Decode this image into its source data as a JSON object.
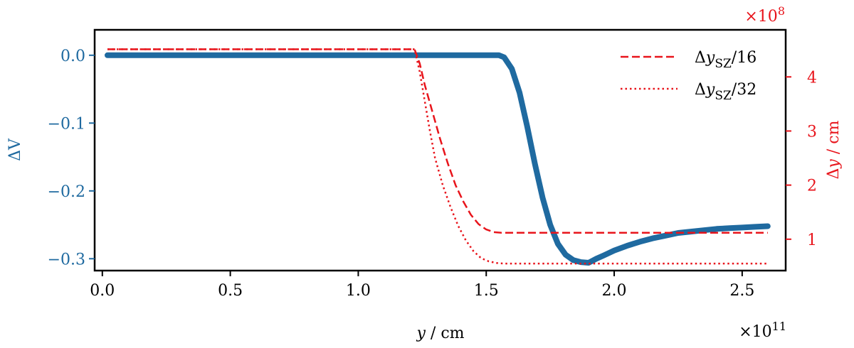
{
  "chart_data": {
    "type": "line",
    "colors": {
      "left_axis": "#1f6aa0",
      "right_axis": "#e8141b",
      "frame": "#000000"
    },
    "x_axis": {
      "label_var": "y",
      "label_unit": "cm",
      "ticks": [
        0.0,
        0.5,
        1.0,
        1.5,
        2.0,
        2.5
      ],
      "tick_labels": [
        "0.0",
        "0.5",
        "1.0",
        "1.5",
        "2.0",
        "2.5"
      ],
      "xlim": [
        -0.03,
        2.67
      ],
      "multiplier": "×10",
      "multiplier_exp": "11"
    },
    "y_left": {
      "label": "ΔV",
      "ticks": [
        0.0,
        -0.1,
        -0.2,
        -0.3
      ],
      "tick_labels": [
        "0.0",
        "−0.1",
        "−0.2",
        "−0.3"
      ],
      "ylim": [
        -0.3175,
        0.0375
      ]
    },
    "y_right": {
      "label_prefix": "Δ",
      "label_var": "y",
      "label_unit": "cm",
      "ticks": [
        1,
        2,
        3,
        4
      ],
      "tick_labels": [
        "1",
        "2",
        "3",
        "4"
      ],
      "ylim": [
        0.42,
        4.87
      ],
      "multiplier": "×10",
      "multiplier_exp": "8"
    },
    "legend": {
      "placement": "top-right",
      "entries": [
        {
          "prefix": "Δ",
          "var": "y",
          "sub": "SZ",
          "suffix": "/16",
          "style": "dashed"
        },
        {
          "prefix": "Δ",
          "var": "y",
          "sub": "SZ",
          "suffix": "/32",
          "style": "dotted"
        }
      ]
    },
    "series": [
      {
        "axis": "left",
        "style": "thick-solid",
        "points": [
          [
            0.02,
            0.0
          ],
          [
            1.0,
            0.0
          ],
          [
            1.55,
            0.0
          ],
          [
            1.57,
            -0.003
          ],
          [
            1.6,
            -0.02
          ],
          [
            1.63,
            -0.055
          ],
          [
            1.66,
            -0.105
          ],
          [
            1.69,
            -0.16
          ],
          [
            1.72,
            -0.21
          ],
          [
            1.75,
            -0.25
          ],
          [
            1.78,
            -0.278
          ],
          [
            1.81,
            -0.294
          ],
          [
            1.84,
            -0.302
          ],
          [
            1.87,
            -0.305
          ],
          [
            1.9,
            -0.306
          ],
          [
            1.93,
            -0.3
          ],
          [
            1.96,
            -0.295
          ],
          [
            2.0,
            -0.288
          ],
          [
            2.05,
            -0.281
          ],
          [
            2.1,
            -0.275
          ],
          [
            2.15,
            -0.27
          ],
          [
            2.2,
            -0.266
          ],
          [
            2.25,
            -0.262
          ],
          [
            2.3,
            -0.26
          ],
          [
            2.35,
            -0.258
          ],
          [
            2.4,
            -0.256
          ],
          [
            2.45,
            -0.255
          ],
          [
            2.5,
            -0.254
          ],
          [
            2.55,
            -0.253
          ],
          [
            2.6,
            -0.252
          ]
        ]
      },
      {
        "axis": "right",
        "style": "dashed",
        "points": [
          [
            0.02,
            4.51
          ],
          [
            1.22,
            4.51
          ],
          [
            1.24,
            4.25
          ],
          [
            1.26,
            3.85
          ],
          [
            1.29,
            3.35
          ],
          [
            1.32,
            2.85
          ],
          [
            1.35,
            2.4
          ],
          [
            1.38,
            2.0
          ],
          [
            1.41,
            1.7
          ],
          [
            1.44,
            1.45
          ],
          [
            1.47,
            1.28
          ],
          [
            1.5,
            1.18
          ],
          [
            1.53,
            1.13
          ],
          [
            1.56,
            1.12
          ],
          [
            2.0,
            1.12
          ],
          [
            2.6,
            1.12
          ]
        ]
      },
      {
        "axis": "right",
        "style": "dotted",
        "points": [
          [
            0.02,
            4.51
          ],
          [
            1.22,
            4.51
          ],
          [
            1.24,
            4.1
          ],
          [
            1.26,
            3.55
          ],
          [
            1.28,
            3.0
          ],
          [
            1.3,
            2.5
          ],
          [
            1.33,
            2.0
          ],
          [
            1.36,
            1.6
          ],
          [
            1.39,
            1.25
          ],
          [
            1.42,
            0.98
          ],
          [
            1.45,
            0.78
          ],
          [
            1.48,
            0.65
          ],
          [
            1.51,
            0.59
          ],
          [
            1.54,
            0.56
          ],
          [
            1.57,
            0.55
          ],
          [
            2.0,
            0.55
          ],
          [
            2.6,
            0.55
          ]
        ]
      }
    ]
  }
}
